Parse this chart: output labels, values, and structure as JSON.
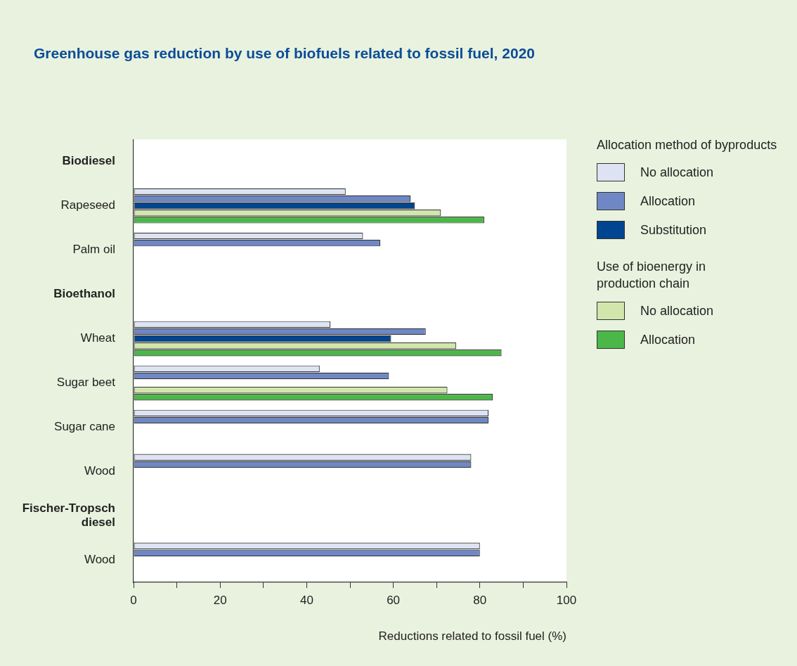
{
  "chart_data": {
    "type": "bar",
    "orientation": "horizontal",
    "title": "Greenhouse gas reduction by use of biofuels related to fossil fuel, 2020",
    "xlabel": "Reductions related to fossil fuel (%)",
    "legend_title": [
      "Allocation method of byproducts",
      "Use of bioenergy in production chain"
    ],
    "legend": "right",
    "categories": [
      "Biodiesel",
      "Rapeseed",
      "Palm oil",
      "Bioethanol",
      "Wheat",
      "Sugar beet",
      "Sugar cane",
      "Wood",
      "Fischer-Tropsch diesel",
      "Wood"
    ],
    "series": [
      {
        "name": "No allocation",
        "color": "#dde3f3",
        "values": [
          null,
          49,
          53,
          null,
          45.5,
          43,
          82,
          78,
          null,
          80
        ]
      },
      {
        "name": "Allocation",
        "color": "#6f88c5",
        "values": [
          null,
          64,
          57,
          null,
          67.5,
          59,
          82,
          78,
          null,
          80
        ]
      },
      {
        "name": "Substitution",
        "color": "#00458f",
        "values": [
          null,
          65,
          null,
          null,
          59.5,
          null,
          null,
          null,
          null,
          null
        ]
      },
      {
        "name": "No allocation",
        "color": "#d2e6ac",
        "values": [
          null,
          71,
          null,
          null,
          74.5,
          72.5,
          null,
          null,
          null,
          null
        ]
      },
      {
        "name": "Allocation",
        "color": "#4bb748",
        "values": [
          null,
          81,
          null,
          null,
          85,
          83,
          null,
          null,
          null,
          null
        ]
      }
    ],
    "xlim": [
      0,
      100
    ],
    "xticks": [
      0,
      {
        "value": 10,
        "label": null
      },
      20,
      {
        "value": 30,
        "label": null
      },
      40,
      {
        "value": 50,
        "label": null
      },
      60,
      {
        "value": 70,
        "label": null
      },
      80,
      {
        "value": 90,
        "label": null
      },
      100
    ],
    "grid": false
  }
}
